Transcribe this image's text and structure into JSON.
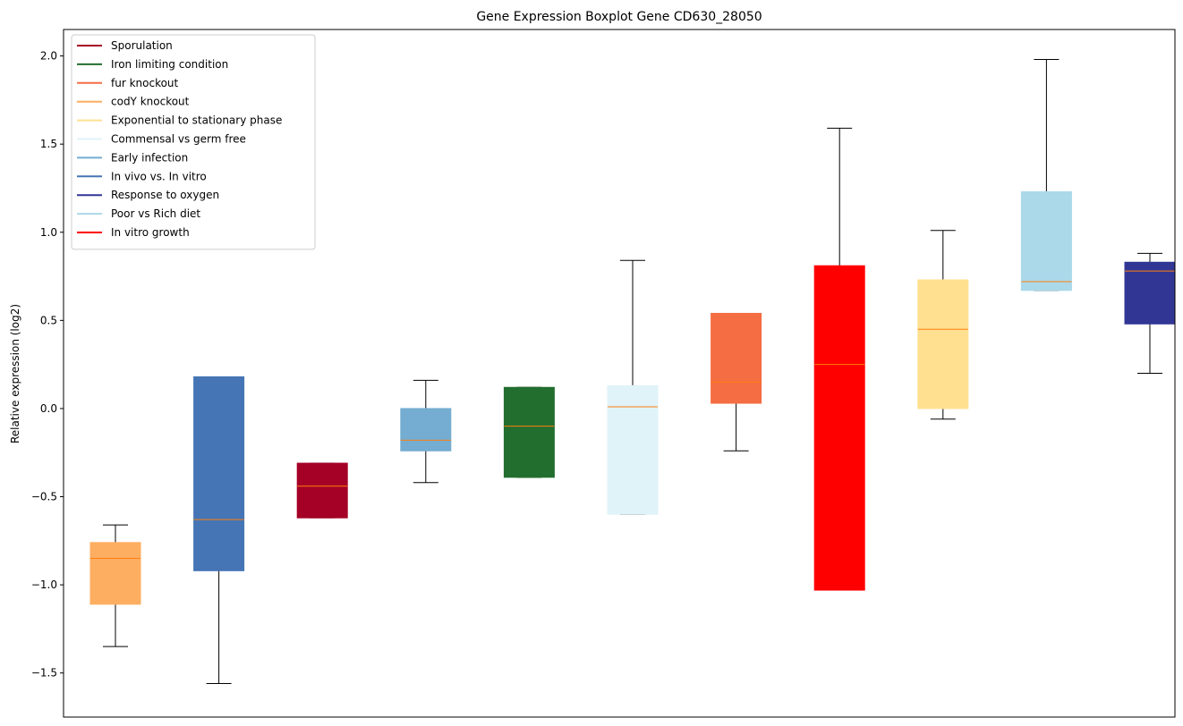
{
  "chart_data": {
    "type": "boxplot",
    "title": "Gene Expression Boxplot Gene CD630_28050",
    "xlabel": "",
    "ylabel": "Relative expression (log2)",
    "ylim": [
      -1.75,
      2.15
    ],
    "yticks": [
      -1.5,
      -1.0,
      -0.5,
      0.0,
      0.5,
      1.0,
      1.5,
      2.0
    ],
    "ytick_labels": [
      "−1.5",
      "−1.0",
      "−0.5",
      "0.0",
      "0.5",
      "1.0",
      "1.5",
      "2.0"
    ],
    "legend_position": "top-left",
    "legend": [
      {
        "label": "Sporulation",
        "color": "#a50026"
      },
      {
        "label": "Iron limiting condition",
        "color": "#226e2f"
      },
      {
        "label": "fur knockout",
        "color": "#f46d43"
      },
      {
        "label": "codY knockout",
        "color": "#fdae61"
      },
      {
        "label": "Exponential to stationary phase",
        "color": "#fee090"
      },
      {
        "label": "Commensal vs germ free",
        "color": "#e0f3f8"
      },
      {
        "label": "Early infection",
        "color": "#74add1"
      },
      {
        "label": "In vivo vs. In vitro",
        "color": "#4575b4"
      },
      {
        "label": "Response to oxygen",
        "color": "#313695"
      },
      {
        "label": "Poor vs Rich diet",
        "color": "#abd9e9"
      },
      {
        "label": "In vitro growth",
        "color": "#ff0000"
      }
    ],
    "median_color": "#ff7f0e",
    "boxes": [
      {
        "group": "codY knockout",
        "color": "#fdae61",
        "whisker_low": -1.35,
        "q1": -1.11,
        "median": -0.85,
        "q3": -0.76,
        "whisker_high": -0.66
      },
      {
        "group": "In vivo vs. In vitro",
        "color": "#4575b4",
        "whisker_low": -1.56,
        "q1": -0.92,
        "median": -0.63,
        "q3": 0.18,
        "whisker_high": 0.18
      },
      {
        "group": "Sporulation",
        "color": "#a50026",
        "whisker_low": -0.62,
        "q1": -0.62,
        "median": -0.44,
        "q3": -0.31,
        "whisker_high": -0.31
      },
      {
        "group": "Early infection",
        "color": "#74add1",
        "whisker_low": -0.42,
        "q1": -0.24,
        "median": -0.18,
        "q3": 0.0,
        "whisker_high": 0.16
      },
      {
        "group": "Iron limiting condition",
        "color": "#226e2f",
        "whisker_low": -0.39,
        "q1": -0.39,
        "median": -0.1,
        "q3": 0.12,
        "whisker_high": 0.12
      },
      {
        "group": "Commensal vs germ free",
        "color": "#e0f3f8",
        "whisker_low": -0.6,
        "q1": -0.6,
        "median": 0.01,
        "q3": 0.13,
        "whisker_high": 0.84
      },
      {
        "group": "fur knockout",
        "color": "#f46d43",
        "whisker_low": -0.24,
        "q1": 0.03,
        "median": 0.15,
        "q3": 0.54,
        "whisker_high": 0.54
      },
      {
        "group": "In vitro growth",
        "color": "#ff0000",
        "whisker_low": -1.03,
        "q1": -1.03,
        "median": 0.25,
        "q3": 0.81,
        "whisker_high": 1.59
      },
      {
        "group": "Exponential to stationary phase",
        "color": "#fee090",
        "whisker_low": -0.06,
        "q1": 0.0,
        "median": 0.45,
        "q3": 0.73,
        "whisker_high": 1.01
      },
      {
        "group": "Poor vs Rich diet",
        "color": "#abd9e9",
        "whisker_low": 0.67,
        "q1": 0.67,
        "median": 0.72,
        "q3": 1.23,
        "whisker_high": 1.98
      },
      {
        "group": "Response to oxygen",
        "color": "#313695",
        "whisker_low": 0.2,
        "q1": 0.48,
        "median": 0.78,
        "q3": 0.83,
        "whisker_high": 0.88
      }
    ]
  }
}
